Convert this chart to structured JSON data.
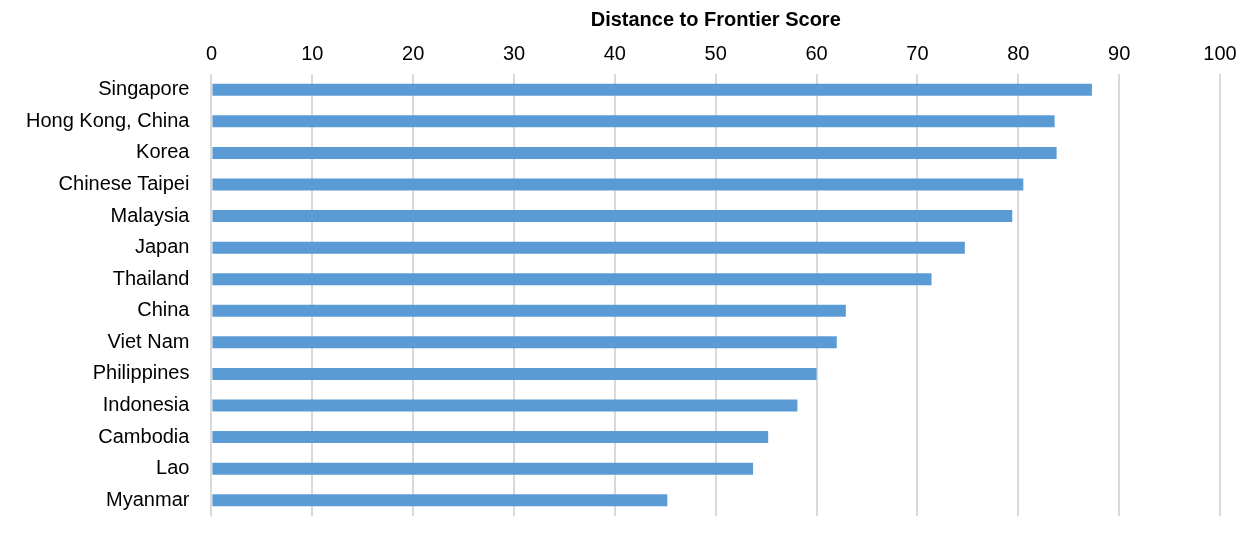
{
  "chart_data": {
    "type": "bar",
    "orientation": "horizontal",
    "xlabel": "Distance to Frontier Score",
    "categories": [
      "Singapore",
      "Hong Kong, China",
      "Korea",
      "Chinese Taipei",
      "Malaysia",
      "Japan",
      "Thailand",
      "China",
      "Viet Nam",
      "Philippines",
      "Indonesia",
      "Cambodia",
      "Lao",
      "Myanmar"
    ],
    "values": [
      87.3,
      83.6,
      83.8,
      80.5,
      79.4,
      74.7,
      71.4,
      62.9,
      62.0,
      60.0,
      58.1,
      55.2,
      53.7,
      45.2
    ],
    "color": "#5b9bd5",
    "xlim": [
      0,
      100
    ],
    "xticks": [
      0,
      10,
      20,
      30,
      40,
      50,
      60,
      70,
      80,
      90,
      100
    ],
    "grid": "x",
    "legend": false
  }
}
